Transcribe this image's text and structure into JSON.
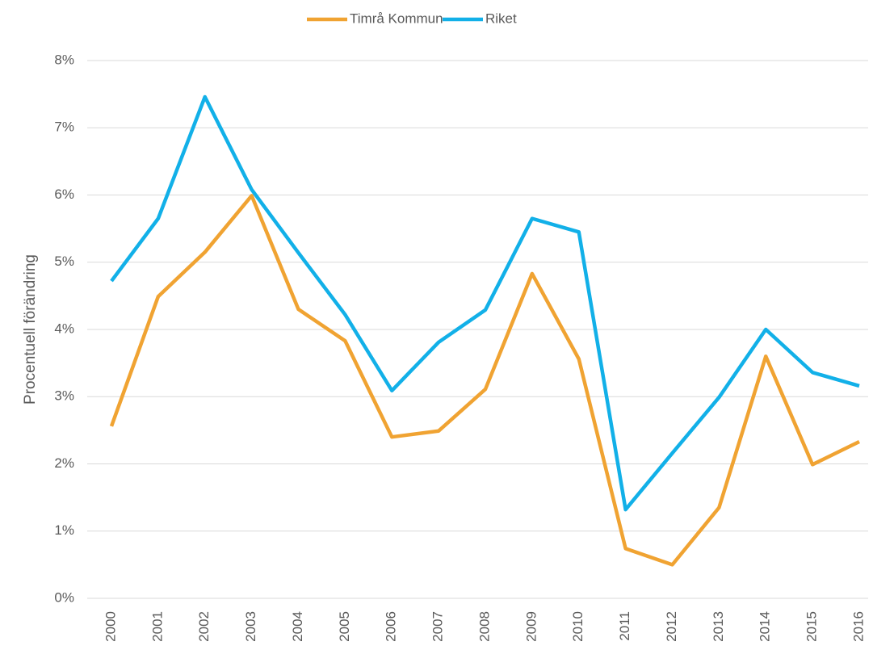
{
  "chart_data": {
    "type": "line",
    "y_label": "Procentuell förändring",
    "categories": [
      "2000",
      "2001",
      "2002",
      "2003",
      "2004",
      "2005",
      "2006",
      "2007",
      "2008",
      "2009",
      "2010",
      "2011",
      "2012",
      "2013",
      "2014",
      "2015",
      "2016"
    ],
    "series": [
      {
        "name": "Timrå Kommun",
        "color": "#f0a332",
        "values": [
          2.56,
          4.49,
          5.15,
          5.99,
          4.3,
          3.83,
          2.4,
          2.49,
          3.11,
          4.83,
          3.56,
          0.74,
          0.5,
          1.35,
          3.6,
          1.99,
          2.33
        ]
      },
      {
        "name": "Riket",
        "color": "#12b0e8",
        "values": [
          4.72,
          5.65,
          7.46,
          6.08,
          5.14,
          4.22,
          3.09,
          3.81,
          4.29,
          5.65,
          5.45,
          1.32,
          2.16,
          2.99,
          4.0,
          3.36,
          3.16
        ]
      }
    ],
    "ylim": [
      0,
      8
    ],
    "yticks": [
      {
        "value": 0,
        "label": "0%"
      },
      {
        "value": 1,
        "label": "1%"
      },
      {
        "value": 2,
        "label": "2%"
      },
      {
        "value": 3,
        "label": "3%"
      },
      {
        "value": 4,
        "label": "4%"
      },
      {
        "value": 5,
        "label": "5%"
      },
      {
        "value": 6,
        "label": "6%"
      },
      {
        "value": 7,
        "label": "7%"
      },
      {
        "value": 8,
        "label": "8%"
      }
    ],
    "grid": true,
    "legend": "top"
  }
}
